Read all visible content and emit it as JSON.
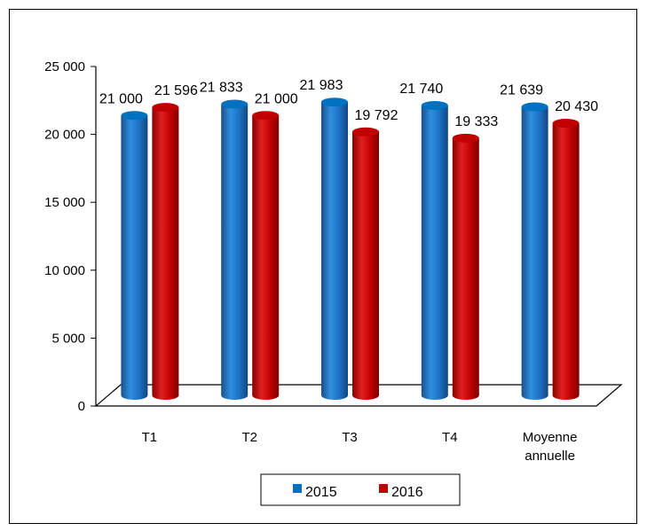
{
  "chart_data": {
    "type": "bar",
    "style": "3d-cylinder",
    "categories": [
      [
        "T1"
      ],
      [
        "T2"
      ],
      [
        "T3"
      ],
      [
        "T4"
      ],
      [
        "Moyenne",
        "annuelle"
      ]
    ],
    "series": [
      {
        "name": "2015",
        "color": "#0070C0",
        "values": [
          21000,
          21833,
          21983,
          21740,
          21639
        ]
      },
      {
        "name": "2016",
        "color": "#C00000",
        "values": [
          21596,
          21000,
          19792,
          19333,
          20430
        ]
      }
    ],
    "data_labels": [
      [
        "21 000",
        "21 833",
        "21 983",
        "21 740",
        "21 639"
      ],
      [
        "21 596",
        "21 000",
        "19 792",
        "19 333",
        "20 430"
      ]
    ],
    "ylim": [
      0,
      25000
    ],
    "yticks": [
      0,
      5000,
      10000,
      15000,
      20000,
      25000
    ],
    "ytick_labels": [
      "0",
      "5 000",
      "10 000",
      "15 000",
      "20 000",
      "25 000"
    ],
    "grid": false,
    "legend_position": "bottom"
  }
}
